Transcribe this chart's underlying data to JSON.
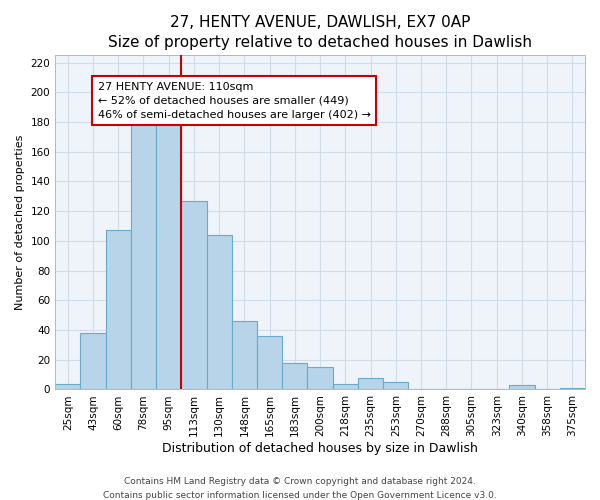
{
  "title": "27, HENTY AVENUE, DAWLISH, EX7 0AP",
  "subtitle": "Size of property relative to detached houses in Dawlish",
  "xlabel": "Distribution of detached houses by size in Dawlish",
  "ylabel": "Number of detached properties",
  "bar_labels": [
    "25sqm",
    "43sqm",
    "60sqm",
    "78sqm",
    "95sqm",
    "113sqm",
    "130sqm",
    "148sqm",
    "165sqm",
    "183sqm",
    "200sqm",
    "218sqm",
    "235sqm",
    "253sqm",
    "270sqm",
    "288sqm",
    "305sqm",
    "323sqm",
    "340sqm",
    "358sqm",
    "375sqm"
  ],
  "bar_heights": [
    4,
    38,
    107,
    179,
    179,
    127,
    104,
    46,
    36,
    18,
    15,
    4,
    8,
    5,
    0,
    0,
    0,
    0,
    3,
    0,
    1
  ],
  "bar_color": "#b8d4e8",
  "bar_edge_color": "#6aabcc",
  "vline_color": "#cc0000",
  "annotation_title": "27 HENTY AVENUE: 110sqm",
  "annotation_line1": "← 52% of detached houses are smaller (449)",
  "annotation_line2": "46% of semi-detached houses are larger (402) →",
  "annotation_box_color": "#ffffff",
  "annotation_box_edge": "#cc0000",
  "ylim": [
    0,
    225
  ],
  "yticks": [
    0,
    20,
    40,
    60,
    80,
    100,
    120,
    140,
    160,
    180,
    200,
    220
  ],
  "footnote1": "Contains HM Land Registry data © Crown copyright and database right 2024.",
  "footnote2": "Contains public sector information licensed under the Open Government Licence v3.0.",
  "title_fontsize": 11,
  "subtitle_fontsize": 9.5,
  "xlabel_fontsize": 9,
  "ylabel_fontsize": 8,
  "tick_fontsize": 7.5,
  "annotation_fontsize": 8,
  "footnote_fontsize": 6.5,
  "grid_color": "#d0dce8",
  "background_color": "#eef4fa"
}
